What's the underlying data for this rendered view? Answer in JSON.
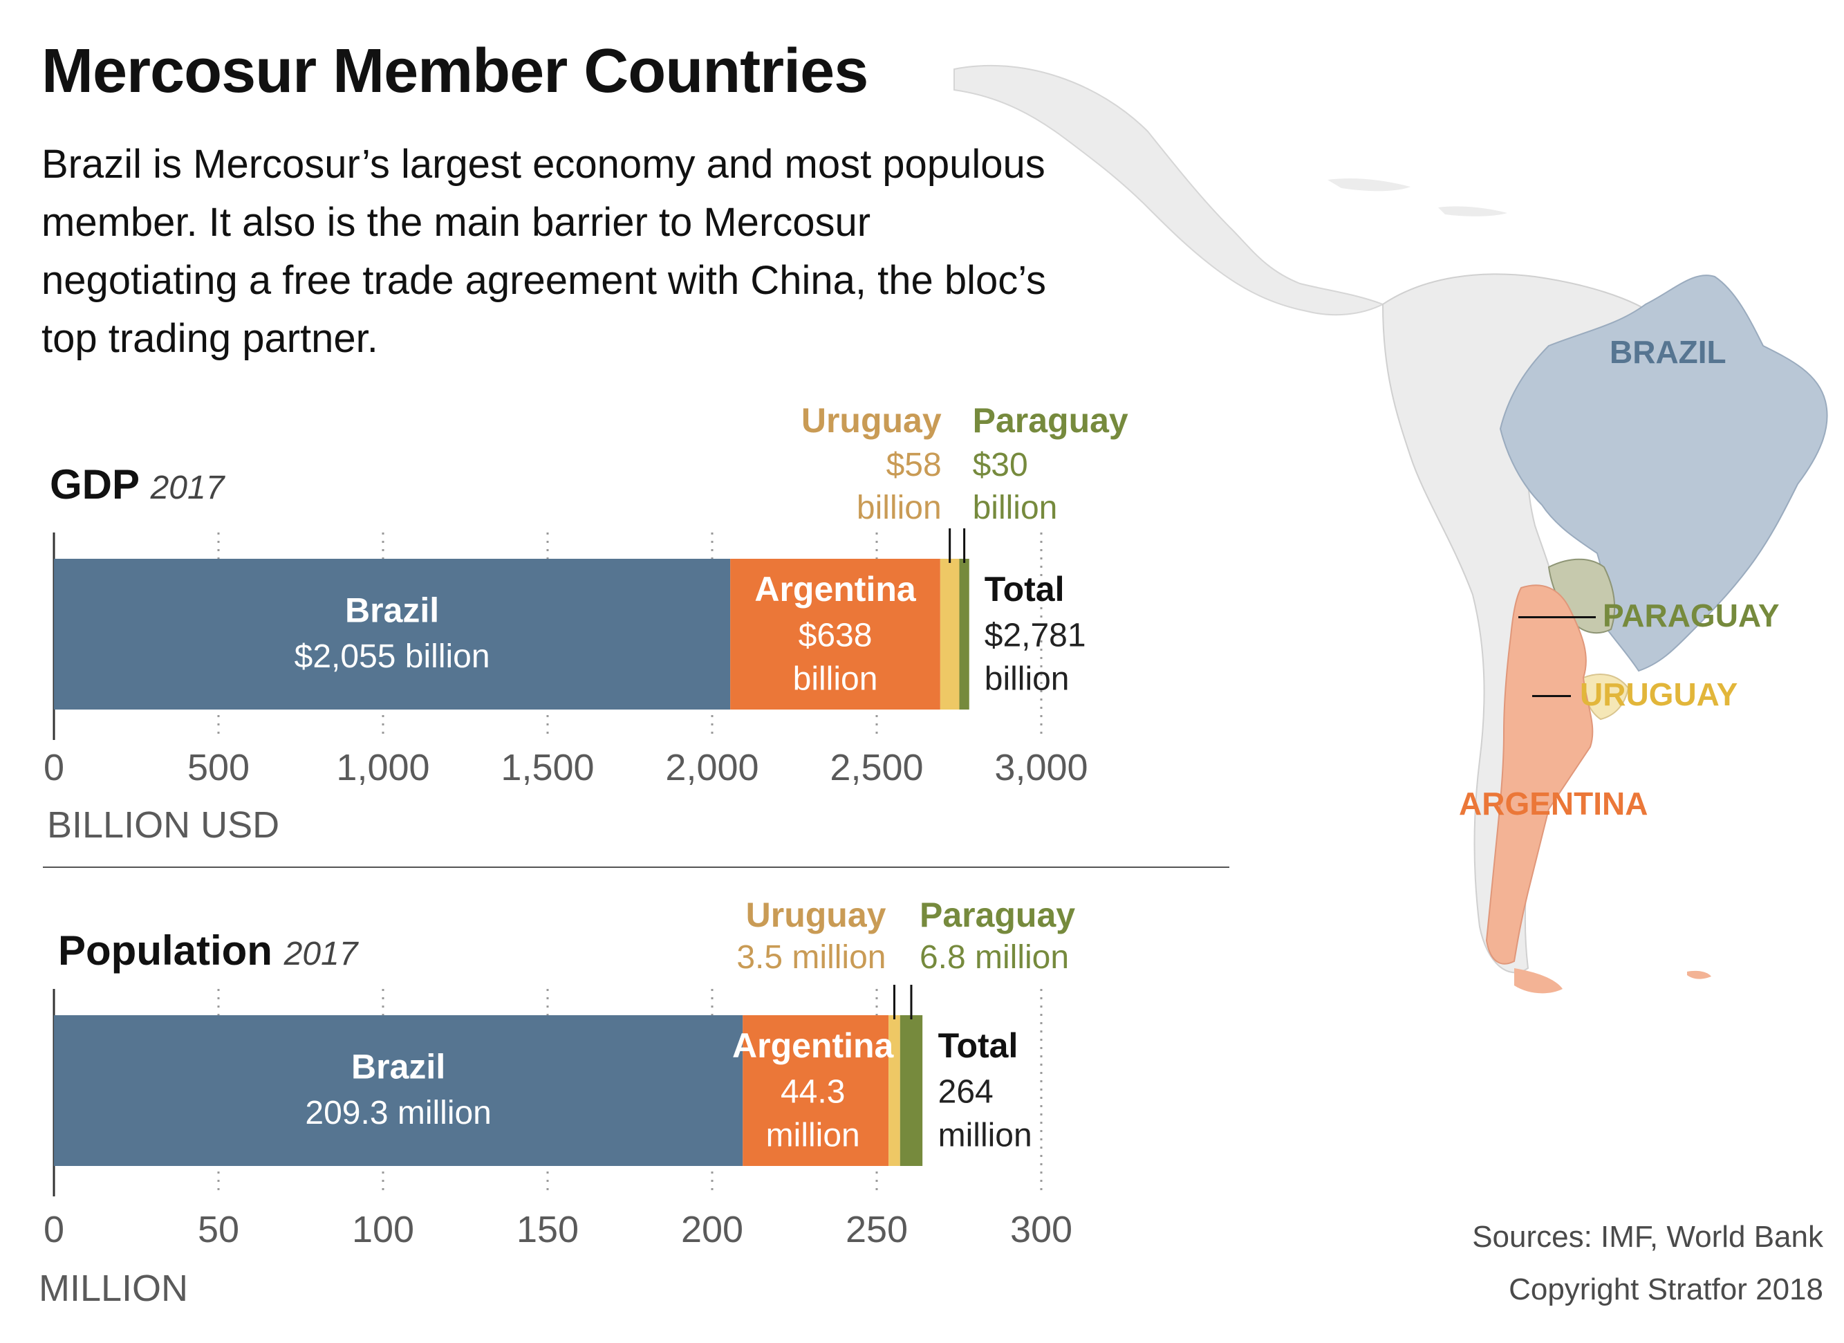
{
  "title": "Mercosur Member Countries",
  "subtitle": "Brazil is Mercosur’s largest economy and most populous member. It also is the main barrier to Mercosur negotiating a free trade agreement with China, the bloc’s top trading partner.",
  "colors": {
    "brazil": "#567591",
    "argentina": "#eb7738",
    "uruguay": "#eec865",
    "paraguay": "#768a3d",
    "uruguay_label": "#c99b55",
    "paraguay_label": "#768a3d",
    "map_land": "#ececec",
    "map_brazil": "#b9c7d6",
    "map_argentina": "#f3b395",
    "map_paraguay": "#c6c9ad",
    "map_uruguay": "#f5e7b6"
  },
  "gdp": {
    "heading": "GDP",
    "year": "2017",
    "unit_label": "BILLION USD",
    "labels": {
      "brazil_name": "Brazil",
      "brazil_value": "$2,055 billion",
      "argentina_name": "Argentina",
      "argentina_value_1": "$638",
      "argentina_value_2": "billion",
      "uruguay_name": "Uruguay",
      "uruguay_value_1": "$58",
      "uruguay_value_2": "billion",
      "paraguay_name": "Paraguay",
      "paraguay_value_1": "$30",
      "paraguay_value_2": "billion",
      "total_name": "Total",
      "total_value_1": "$2,781",
      "total_value_2": "billion"
    }
  },
  "population": {
    "heading": "Population",
    "year": "2017",
    "unit_label": "MILLION",
    "labels": {
      "brazil_name": "Brazil",
      "brazil_value": "209.3 million",
      "argentina_name": "Argentina",
      "argentina_value_1": "44.3",
      "argentina_value_2": "million",
      "uruguay_name": "Uruguay",
      "uruguay_value": "3.5 million",
      "paraguay_name": "Paraguay",
      "paraguay_value": "6.8 million",
      "total_name": "Total",
      "total_value_1": "264",
      "total_value_2": "million"
    }
  },
  "map": {
    "labels": {
      "brazil": "BRAZIL",
      "paraguay": "PARAGUAY",
      "uruguay": "URUGUAY",
      "argentina": "ARGENTINA"
    }
  },
  "footer": {
    "sources": "Sources: IMF, World Bank",
    "copyright": "Copyright Stratfor 2018"
  },
  "chart_data": [
    {
      "type": "bar",
      "orientation": "horizontal-stacked",
      "title": "GDP 2017",
      "xlabel": "BILLION USD",
      "xlim": [
        0,
        3000
      ],
      "ticks": [
        0,
        500,
        1000,
        1500,
        2000,
        2500,
        3000
      ],
      "tick_labels": [
        "0",
        "500",
        "1,000",
        "1,500",
        "2,000",
        "2,500",
        "3,000"
      ],
      "grid": "vertical dotted",
      "series": [
        {
          "name": "Brazil",
          "value": 2055
        },
        {
          "name": "Argentina",
          "value": 638
        },
        {
          "name": "Uruguay",
          "value": 58
        },
        {
          "name": "Paraguay",
          "value": 30
        }
      ],
      "total": 2781
    },
    {
      "type": "bar",
      "orientation": "horizontal-stacked",
      "title": "Population 2017",
      "xlabel": "MILLION",
      "xlim": [
        0,
        300
      ],
      "ticks": [
        0,
        50,
        100,
        150,
        200,
        250,
        300
      ],
      "tick_labels": [
        "0",
        "50",
        "100",
        "150",
        "200",
        "250",
        "300"
      ],
      "grid": "vertical dotted",
      "series": [
        {
          "name": "Brazil",
          "value": 209.3
        },
        {
          "name": "Argentina",
          "value": 44.3
        },
        {
          "name": "Uruguay",
          "value": 3.5
        },
        {
          "name": "Paraguay",
          "value": 6.8
        }
      ],
      "total": 264
    }
  ]
}
